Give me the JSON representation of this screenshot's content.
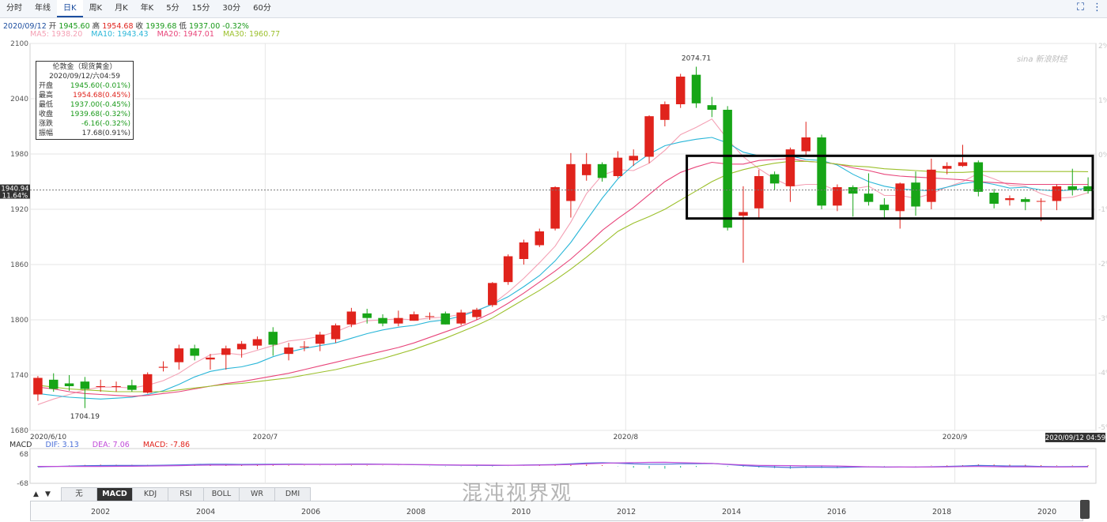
{
  "tabs": [
    "分时",
    "年线",
    "日K",
    "周K",
    "月K",
    "年K",
    "5分",
    "15分",
    "30分",
    "60分"
  ],
  "active_tab": 2,
  "icons": [
    "fullscreen-icon",
    "more-icon"
  ],
  "quote": {
    "date": "2020/09/12",
    "open_label": "开",
    "open": "1945.60",
    "high_label": "高",
    "high": "1954.68",
    "close_label": "收",
    "close": "1939.68",
    "low_label": "低",
    "low": "1937.00",
    "change": "-0.32%"
  },
  "ma": [
    {
      "label": "MA5: 1938.20",
      "color": "#f4a0b4"
    },
    {
      "label": "MA10: 1943.43",
      "color": "#29b6d8"
    },
    {
      "label": "MA20: 1947.01",
      "color": "#e8457a"
    },
    {
      "label": "MA30: 1960.77",
      "color": "#9cc02c"
    }
  ],
  "info_box": {
    "title": "伦敦金（现货黄金）",
    "datetime": "2020/09/12/六04:59",
    "rows": [
      {
        "label": "开盘",
        "value": "1945.60(-0.01%)",
        "color": "#1a9a1a"
      },
      {
        "label": "最高",
        "value": "1954.68(0.45%)",
        "color": "#e0231c"
      },
      {
        "label": "最低",
        "value": "1937.00(-0.45%)",
        "color": "#1a9a1a"
      },
      {
        "label": "收盘",
        "value": "1939.68(-0.32%)",
        "color": "#1a9a1a"
      },
      {
        "label": "涨跌",
        "value": "-6.16(-0.32%)",
        "color": "#1a9a1a"
      },
      {
        "label": "振幅",
        "value": "17.68(0.91%)",
        "color": "#333333"
      }
    ]
  },
  "price_marker": {
    "price": "1940.94",
    "pct": "11.64%"
  },
  "time_marker": "2020/09/12 04:59",
  "colors": {
    "up": "#e0231c",
    "down": "#17a517",
    "grid": "#e6e6e6",
    "highlight_box": "#000000"
  },
  "macd": {
    "name": "MACD",
    "dif": "DIF: 3.13",
    "dea": "DEA: 7.06",
    "macd": "MACD: -7.86",
    "top": "68",
    "bottom": "-68"
  },
  "indicator_tabs": [
    "无",
    "MACD",
    "KDJ",
    "RSI",
    "BOLL",
    "WR",
    "DMI"
  ],
  "active_indicator": 1,
  "timeline_years": [
    "2002",
    "2004",
    "2006",
    "2008",
    "2010",
    "2012",
    "2014",
    "2016",
    "2018",
    "2020"
  ],
  "watermark": "混沌视界观",
  "chart_data": {
    "type": "candlestick",
    "ylim": [
      1680,
      2100
    ],
    "y_ticks": [
      1680,
      1740,
      1800,
      1860,
      1920,
      1980,
      2040,
      2100
    ],
    "right_ticks": [
      "2%",
      "1%",
      "0%",
      "-1%",
      "-2%",
      "-3%",
      "-4%",
      "-5%"
    ],
    "x_labels": [
      {
        "label": "2020/6/10",
        "index": 0
      },
      {
        "label": "2020/7",
        "index": 15
      },
      {
        "label": "2020/8",
        "index": 38
      },
      {
        "label": "2020/9",
        "index": 59
      }
    ],
    "annotations": [
      {
        "text": "2074.71",
        "index": 42,
        "value": 2074.71
      },
      {
        "text": "1704.19",
        "index": 3,
        "value": 1704.19
      }
    ],
    "highlight_range": {
      "from_index": 42,
      "to_index": 67,
      "ymin": 1910,
      "ymax": 1978
    },
    "candles": [
      [
        1719,
        1737,
        1712,
        1739
      ],
      [
        1735,
        1725,
        1722,
        1742
      ],
      [
        1731,
        1728,
        1723,
        1740
      ],
      [
        1733,
        1725,
        1704.19,
        1738
      ],
      [
        1728,
        1728,
        1722,
        1735
      ],
      [
        1728,
        1728,
        1722,
        1733
      ],
      [
        1729,
        1724,
        1722,
        1735
      ],
      [
        1721,
        1741,
        1720,
        1743
      ],
      [
        1748,
        1749,
        1744,
        1755
      ],
      [
        1754,
        1769,
        1746,
        1773
      ],
      [
        1769,
        1761,
        1756,
        1773
      ],
      [
        1757,
        1759,
        1746,
        1763
      ],
      [
        1762,
        1769,
        1746,
        1772
      ],
      [
        1768,
        1774,
        1759,
        1777
      ],
      [
        1772,
        1779,
        1768,
        1782
      ],
      [
        1787,
        1773,
        1761,
        1792
      ],
      [
        1763,
        1770,
        1756,
        1775
      ],
      [
        1771,
        1771,
        1766,
        1777
      ],
      [
        1774,
        1784,
        1766,
        1787
      ],
      [
        1779,
        1794,
        1775,
        1796
      ],
      [
        1795,
        1809,
        1792,
        1813
      ],
      [
        1807,
        1802,
        1796,
        1812
      ],
      [
        1802,
        1796,
        1793,
        1806
      ],
      [
        1796,
        1802,
        1793,
        1810
      ],
      [
        1799,
        1806,
        1799,
        1809
      ],
      [
        1804,
        1804,
        1800,
        1808
      ],
      [
        1807,
        1795,
        1795,
        1809
      ],
      [
        1796,
        1808,
        1794,
        1811
      ],
      [
        1803,
        1811,
        1800,
        1813
      ],
      [
        1816,
        1840,
        1814,
        1841
      ],
      [
        1841,
        1869,
        1838,
        1871
      ],
      [
        1866,
        1884,
        1860,
        1887
      ],
      [
        1881,
        1896,
        1879,
        1899
      ],
      [
        1899,
        1944,
        1897,
        1945
      ],
      [
        1929,
        1969,
        1911,
        1981
      ],
      [
        1957,
        1969,
        1951,
        1981
      ],
      [
        1969,
        1954,
        1950,
        1971
      ],
      [
        1956,
        1976,
        1954,
        1983
      ],
      [
        1973,
        1978,
        1967,
        1985
      ],
      [
        1977,
        2021,
        1970,
        2022
      ],
      [
        2017,
        2034,
        2010,
        2037
      ],
      [
        2034,
        2064,
        2030,
        2067
      ],
      [
        2066,
        2035,
        2030,
        2074.71
      ],
      [
        2033,
        2028,
        2020,
        2042
      ],
      [
        2028,
        1900,
        1897,
        2032
      ],
      [
        1913,
        1917,
        1862,
        1945
      ],
      [
        1921,
        1956,
        1911,
        1963
      ],
      [
        1958,
        1948,
        1941,
        1961
      ],
      [
        1945,
        1985,
        1928,
        1987
      ],
      [
        1983,
        1998,
        1977,
        2015
      ],
      [
        1998,
        1924,
        1920,
        2001
      ],
      [
        1924,
        1944,
        1918,
        1947
      ],
      [
        1944,
        1937,
        1912,
        1946
      ],
      [
        1937,
        1928,
        1924,
        1959
      ],
      [
        1925,
        1919,
        1909,
        1932
      ],
      [
        1918,
        1948,
        1899,
        1949
      ],
      [
        1949,
        1923,
        1913,
        1961
      ],
      [
        1928,
        1963,
        1920,
        1975
      ],
      [
        1964,
        1967,
        1958,
        1971
      ],
      [
        1967,
        1971,
        1966,
        1990
      ],
      [
        1971,
        1939,
        1934,
        1973
      ],
      [
        1938,
        1926,
        1921,
        1942
      ],
      [
        1930,
        1932,
        1924,
        1935
      ],
      [
        1931,
        1928,
        1919,
        1933
      ],
      [
        1929,
        1929,
        1907,
        1932
      ],
      [
        1929,
        1945,
        1919,
        1947
      ],
      [
        1945,
        1941,
        1935,
        1964
      ],
      [
        1945,
        1939.68,
        1937,
        1954.68
      ]
    ],
    "ma5": [
      1708,
      1714,
      1719,
      1724,
      1727,
      1727,
      1726,
      1729,
      1734,
      1742,
      1753,
      1762,
      1764,
      1762,
      1767,
      1772,
      1777,
      1779,
      1782,
      1787,
      1794,
      1799,
      1800,
      1801,
      1800,
      1802,
      1803,
      1806,
      1810,
      1817,
      1830,
      1845,
      1862,
      1880,
      1906,
      1937,
      1957,
      1963,
      1962,
      1970,
      1984,
      2001,
      2009,
      2018,
      1996,
      1977,
      1964,
      1953,
      1945,
      1947,
      1947,
      1940,
      1942,
      1945,
      1935,
      1935,
      1932,
      1937,
      1944,
      1950,
      1959,
      1953,
      1946,
      1945,
      1937,
      1932,
      1933,
      1938
    ],
    "ma10": [
      1720,
      1718,
      1716,
      1715,
      1714,
      1715,
      1716,
      1719,
      1723,
      1730,
      1738,
      1744,
      1747,
      1749,
      1753,
      1760,
      1765,
      1769,
      1772,
      1775,
      1780,
      1785,
      1789,
      1792,
      1794,
      1798,
      1800,
      1804,
      1810,
      1817,
      1825,
      1836,
      1848,
      1864,
      1884,
      1908,
      1932,
      1953,
      1968,
      1980,
      1989,
      1993,
      1996,
      1998,
      1992,
      1982,
      1978,
      1977,
      1978,
      1974,
      1973,
      1968,
      1958,
      1950,
      1945,
      1942,
      1941,
      1940,
      1944,
      1948,
      1950,
      1947,
      1943,
      1944,
      1941,
      1940,
      1941,
      1943
    ],
    "ma20": [
      1727,
      1725,
      1722,
      1720,
      1719,
      1718,
      1717,
      1718,
      1720,
      1722,
      1725,
      1728,
      1731,
      1733,
      1736,
      1739,
      1742,
      1746,
      1750,
      1754,
      1758,
      1762,
      1766,
      1770,
      1775,
      1781,
      1787,
      1793,
      1800,
      1808,
      1818,
      1829,
      1841,
      1853,
      1866,
      1881,
      1897,
      1910,
      1922,
      1936,
      1950,
      1960,
      1966,
      1971,
      1969,
      1969,
      1973,
      1974,
      1975,
      1972,
      1971,
      1969,
      1965,
      1962,
      1958,
      1956,
      1955,
      1954,
      1953,
      1952,
      1950,
      1949,
      1948,
      1947,
      1947,
      1947,
      1947,
      1947
    ],
    "ma30": [
      1729,
      1727,
      1725,
      1724,
      1723,
      1722,
      1722,
      1722,
      1722,
      1724,
      1726,
      1728,
      1730,
      1731,
      1733,
      1735,
      1737,
      1740,
      1743,
      1746,
      1750,
      1754,
      1758,
      1763,
      1768,
      1774,
      1780,
      1787,
      1794,
      1802,
      1812,
      1822,
      1832,
      1843,
      1855,
      1868,
      1882,
      1896,
      1905,
      1912,
      1920,
      1930,
      1940,
      1950,
      1958,
      1963,
      1967,
      1970,
      1972,
      1972,
      1971,
      1969,
      1967,
      1966,
      1964,
      1963,
      1962,
      1961,
      1960,
      1960,
      1961,
      1961,
      1961,
      1961,
      1961,
      1961,
      1961,
      1960.77
    ]
  }
}
